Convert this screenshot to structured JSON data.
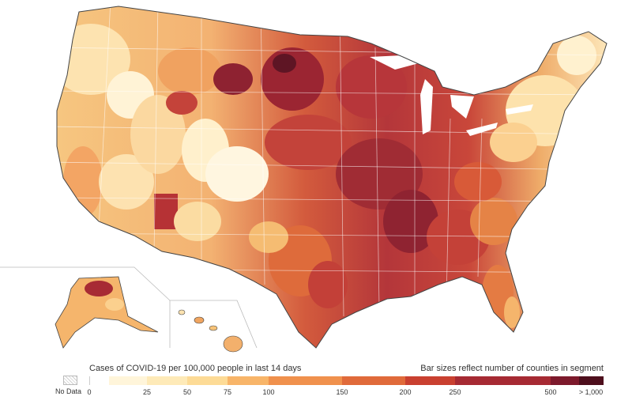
{
  "legend": {
    "title": "Cases of COVID-19 per 100,000 people in last 14 days",
    "note": "Bar sizes reflect number of counties in segment",
    "no_data_label": "No Data",
    "segments": [
      {
        "color": "#ffffff"
      },
      {
        "color": "#fff5da"
      },
      {
        "color": "#feeab8"
      },
      {
        "color": "#fddb96"
      },
      {
        "color": "#f8b569"
      },
      {
        "color": "#f0914d"
      },
      {
        "color": "#e06a3a"
      },
      {
        "color": "#c94030"
      },
      {
        "color": "#a62a33"
      },
      {
        "color": "#7d1a2c"
      },
      {
        "color": "#4e0f1d"
      }
    ],
    "ticks": [
      {
        "label": "0"
      },
      {
        "label": "25"
      },
      {
        "label": "50"
      },
      {
        "label": "75"
      },
      {
        "label": "100"
      },
      {
        "label": "150"
      },
      {
        "label": "200"
      },
      {
        "label": "250"
      },
      {
        "label": "500"
      },
      {
        "label": "> 1,000"
      }
    ]
  }
}
